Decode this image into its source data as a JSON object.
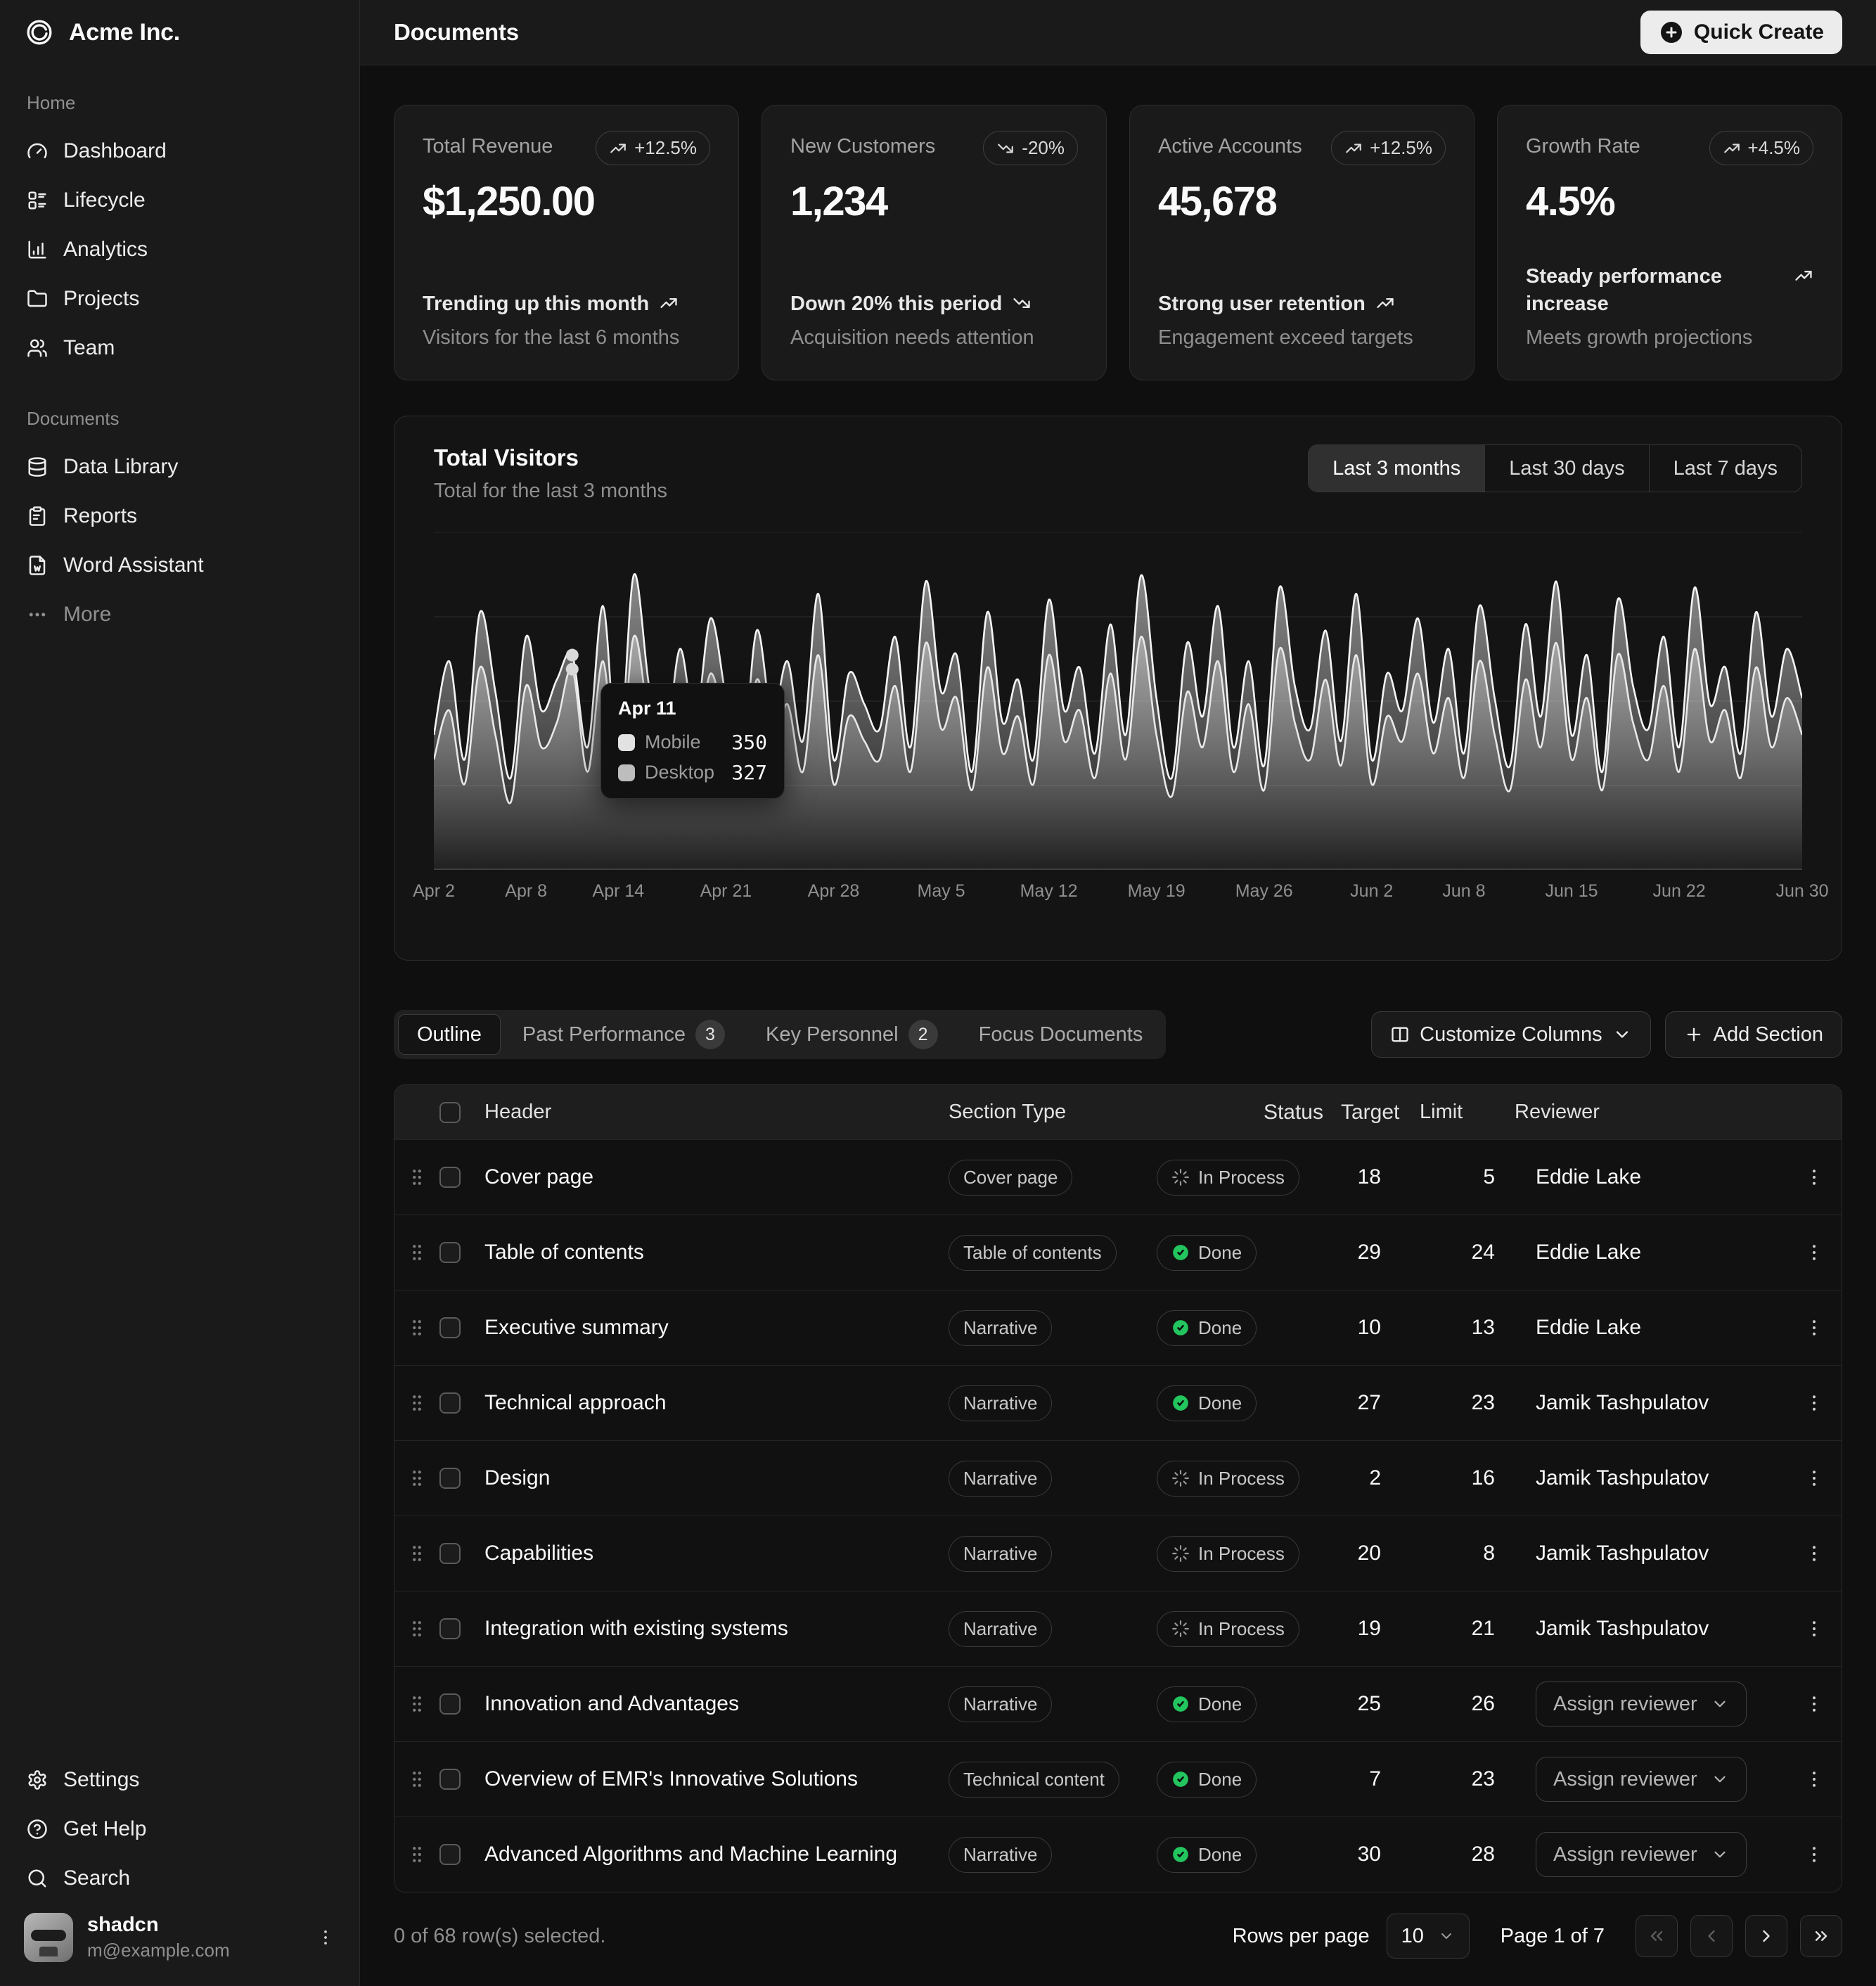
{
  "brand": {
    "name": "Acme Inc."
  },
  "header": {
    "title": "Documents",
    "quick_create_label": "Quick Create"
  },
  "sidebar": {
    "sections": [
      {
        "label": "Home",
        "items": [
          {
            "icon": "gauge",
            "label": "Dashboard"
          },
          {
            "icon": "list",
            "label": "Lifecycle"
          },
          {
            "icon": "chart-bar",
            "label": "Analytics"
          },
          {
            "icon": "folder",
            "label": "Projects"
          },
          {
            "icon": "users",
            "label": "Team"
          }
        ]
      },
      {
        "label": "Documents",
        "items": [
          {
            "icon": "database",
            "label": "Data Library"
          },
          {
            "icon": "clipboard",
            "label": "Reports"
          },
          {
            "icon": "file-word",
            "label": "Word Assistant"
          },
          {
            "icon": "ellipsis",
            "label": "More",
            "muted": true
          }
        ]
      }
    ],
    "footer_items": [
      {
        "icon": "settings",
        "label": "Settings"
      },
      {
        "icon": "help",
        "label": "Get Help"
      },
      {
        "icon": "search",
        "label": "Search"
      }
    ],
    "user": {
      "name": "shadcn",
      "email": "m@example.com"
    }
  },
  "stat_cards": [
    {
      "label": "Total Revenue",
      "value": "$1,250.00",
      "badge": "+12.5%",
      "trend": "up",
      "footer_title": "Trending up this month",
      "footer_desc": "Visitors for the last 6 months"
    },
    {
      "label": "New Customers",
      "value": "1,234",
      "badge": "-20%",
      "trend": "down",
      "footer_title": "Down 20% this period",
      "footer_desc": "Acquisition needs attention"
    },
    {
      "label": "Active Accounts",
      "value": "45,678",
      "badge": "+12.5%",
      "trend": "up",
      "footer_title": "Strong user retention",
      "footer_desc": "Engagement exceed targets"
    },
    {
      "label": "Growth Rate",
      "value": "4.5%",
      "badge": "+4.5%",
      "trend": "up",
      "footer_title": "Steady performance increase",
      "footer_desc": "Meets growth projections"
    }
  ],
  "chart_card": {
    "title": "Total Visitors",
    "subtitle": "Total for the last 3 months",
    "range_options": [
      "Last 3 months",
      "Last 30 days",
      "Last 7 days"
    ],
    "selected_range": "Last 3 months",
    "tooltip": {
      "date": "Apr 11",
      "rows": [
        {
          "name": "Mobile",
          "value": "350"
        },
        {
          "name": "Desktop",
          "value": "327"
        }
      ]
    }
  },
  "chart_data": {
    "type": "area",
    "title": "Total Visitors",
    "xlabel": "",
    "ylabel": "",
    "ylim": [
      0,
      550
    ],
    "grid": true,
    "legend": "none",
    "x_ticks": [
      "Apr 2",
      "Apr 8",
      "Apr 14",
      "Apr 21",
      "Apr 28",
      "May 5",
      "May 12",
      "May 19",
      "May 26",
      "Jun 2",
      "Jun 8",
      "Jun 15",
      "Jun 22",
      "Jun 30"
    ],
    "x_tick_indices": [
      0,
      6,
      12,
      19,
      26,
      33,
      40,
      47,
      54,
      61,
      67,
      74,
      81,
      89
    ],
    "highlight_index": 9,
    "series": [
      {
        "name": "Mobile",
        "values": [
          220,
          340,
          180,
          420,
          290,
          150,
          380,
          260,
          310,
          350,
          200,
          430,
          170,
          480,
          300,
          190,
          360,
          240,
          410,
          280,
          160,
          390,
          250,
          340,
          210,
          450,
          180,
          320,
          270,
          230,
          380,
          200,
          470,
          290,
          350,
          160,
          420,
          240,
          310,
          180,
          440,
          260,
          330,
          190,
          400,
          220,
          480,
          280,
          150,
          370,
          250,
          430,
          200,
          340,
          170,
          460,
          300,
          230,
          390,
          210,
          450,
          180,
          320,
          260,
          410,
          240,
          360,
          190,
          430,
          280,
          170,
          400,
          250,
          470,
          220,
          350,
          160,
          440,
          300,
          230,
          380,
          200,
          460,
          270,
          330,
          190,
          420,
          250,
          360,
          280
        ]
      },
      {
        "name": "Desktop",
        "values": [
          180,
          260,
          140,
          330,
          220,
          110,
          300,
          200,
          240,
          327,
          160,
          340,
          130,
          380,
          240,
          150,
          280,
          190,
          320,
          220,
          120,
          310,
          200,
          270,
          160,
          350,
          140,
          250,
          210,
          180,
          300,
          160,
          370,
          230,
          280,
          130,
          330,
          190,
          250,
          140,
          350,
          210,
          260,
          150,
          320,
          180,
          380,
          220,
          120,
          290,
          200,
          340,
          160,
          270,
          130,
          360,
          240,
          180,
          310,
          170,
          350,
          140,
          250,
          210,
          320,
          190,
          280,
          150,
          340,
          220,
          130,
          310,
          200,
          370,
          180,
          280,
          130,
          350,
          240,
          180,
          300,
          160,
          360,
          210,
          260,
          150,
          330,
          200,
          280,
          220
        ]
      }
    ]
  },
  "tabs": [
    {
      "label": "Outline",
      "active": true
    },
    {
      "label": "Past Performance",
      "badge": "3"
    },
    {
      "label": "Key Personnel",
      "badge": "2"
    },
    {
      "label": "Focus Documents"
    }
  ],
  "toolbar": {
    "customize_label": "Customize Columns",
    "add_label": "Add Section"
  },
  "table": {
    "columns": [
      "Header",
      "Section Type",
      "Status",
      "Target",
      "Limit",
      "Reviewer"
    ],
    "assign_reviewer_label": "Assign reviewer",
    "rows": [
      {
        "header": "Cover page",
        "type": "Cover page",
        "status": "In Process",
        "target": "18",
        "limit": "5",
        "reviewer": "Eddie Lake"
      },
      {
        "header": "Table of contents",
        "type": "Table of contents",
        "status": "Done",
        "target": "29",
        "limit": "24",
        "reviewer": "Eddie Lake"
      },
      {
        "header": "Executive summary",
        "type": "Narrative",
        "status": "Done",
        "target": "10",
        "limit": "13",
        "reviewer": "Eddie Lake"
      },
      {
        "header": "Technical approach",
        "type": "Narrative",
        "status": "Done",
        "target": "27",
        "limit": "23",
        "reviewer": "Jamik Tashpulatov"
      },
      {
        "header": "Design",
        "type": "Narrative",
        "status": "In Process",
        "target": "2",
        "limit": "16",
        "reviewer": "Jamik Tashpulatov"
      },
      {
        "header": "Capabilities",
        "type": "Narrative",
        "status": "In Process",
        "target": "20",
        "limit": "8",
        "reviewer": "Jamik Tashpulatov"
      },
      {
        "header": "Integration with existing systems",
        "type": "Narrative",
        "status": "In Process",
        "target": "19",
        "limit": "21",
        "reviewer": "Jamik Tashpulatov"
      },
      {
        "header": "Innovation and Advantages",
        "type": "Narrative",
        "status": "Done",
        "target": "25",
        "limit": "26",
        "reviewer": null
      },
      {
        "header": "Overview of EMR's Innovative Solutions",
        "type": "Technical content",
        "status": "Done",
        "target": "7",
        "limit": "23",
        "reviewer": null
      },
      {
        "header": "Advanced Algorithms and Machine Learning",
        "type": "Narrative",
        "status": "Done",
        "target": "30",
        "limit": "28",
        "reviewer": null
      }
    ]
  },
  "pagination": {
    "selected_text": "0 of 68 row(s) selected.",
    "rows_per_page_label": "Rows per page",
    "rows_per_page": "10",
    "page_info": "Page 1 of 7"
  },
  "colors": {
    "done_green": "#22c55e",
    "accent_light": "#ececec"
  }
}
